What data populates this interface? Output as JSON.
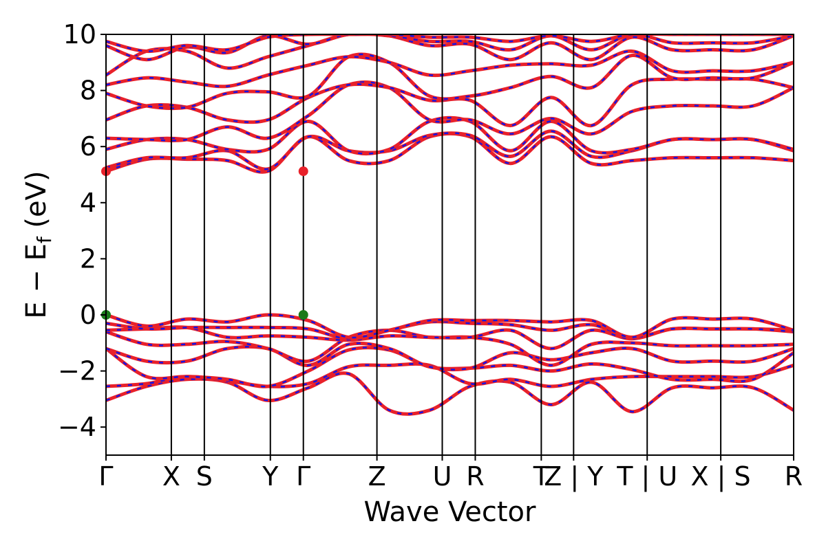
{
  "chart_data": {
    "type": "line",
    "xlabel": "Wave Vector",
    "ylabel": "E − E_f (eV)",
    "ylabel_parts": {
      "main": "E − E",
      "sub": "f",
      "unit": " (eV)"
    },
    "ylim": [
      -5,
      10
    ],
    "yticks": [
      {
        "value": 10,
        "label": "10"
      },
      {
        "value": 8,
        "label": "8"
      },
      {
        "value": 6,
        "label": "6"
      },
      {
        "value": 4,
        "label": "4"
      },
      {
        "value": 2,
        "label": "2"
      },
      {
        "value": 0,
        "label": "0"
      },
      {
        "value": -2,
        "label": "−2"
      },
      {
        "value": -4,
        "label": "−4"
      }
    ],
    "grid": false,
    "kpoints": [
      {
        "label": "Γ",
        "x": 0.0
      },
      {
        "label": "X",
        "x": 0.95
      },
      {
        "label": "S",
        "x": 1.43
      },
      {
        "label": "Y",
        "x": 2.39
      },
      {
        "label": "Γ",
        "x": 2.87
      },
      {
        "label": "Z",
        "x": 3.94
      },
      {
        "label": "U",
        "x": 4.89
      },
      {
        "label": "R",
        "x": 5.37
      },
      {
        "label": "T",
        "x": 6.33
      },
      {
        "label": "Z | Y",
        "x": 6.8
      },
      {
        "label": "T | U",
        "x": 7.87
      },
      {
        "label": "X | S",
        "x": 8.94
      },
      {
        "label": "R",
        "x": 10.0
      }
    ],
    "xlim": [
      0,
      10.0
    ],
    "valence_max_points": [
      {
        "x": 0.0,
        "y": 0.0,
        "color": "#1a7a1a"
      },
      {
        "x": 2.87,
        "y": 0.0,
        "color": "#1a7a1a"
      }
    ],
    "conduction_min_points": [
      {
        "x": 0.0,
        "y": 5.12,
        "color": "#e8212a"
      },
      {
        "x": 2.87,
        "y": 5.12,
        "color": "#e8212a"
      }
    ],
    "band_colors": {
      "up": "#e8212a",
      "down": "#1414e6"
    },
    "bands": [
      {
        "y": [
          -3.05,
          -2.55,
          -2.3,
          -2.4,
          -3.05,
          -2.6,
          -2.1,
          -3.4,
          -3.4,
          -2.55,
          -2.4,
          -3.2,
          -2.4,
          -3.45,
          -2.6,
          -2.6,
          -2.6,
          -3.4
        ]
      },
      {
        "y": [
          -2.55,
          -2.45,
          -2.2,
          -2.35,
          -2.55,
          -2.45,
          -1.85,
          -1.8,
          -1.8,
          -2.45,
          -2.3,
          -2.55,
          -2.3,
          -2.2,
          -2.2,
          -2.2,
          -2.2,
          -1.8
        ]
      },
      {
        "y": [
          -1.2,
          -2.2,
          -2.2,
          -2.3,
          -2.55,
          -2.0,
          -1.25,
          -1.25,
          -1.85,
          -1.9,
          -1.8,
          -2.0,
          -1.75,
          -1.95,
          -2.3,
          -2.3,
          -2.3,
          -1.35
        ]
      },
      {
        "y": [
          -1.2,
          -1.65,
          -1.65,
          -1.2,
          -1.2,
          -1.8,
          -1.05,
          -1.2,
          -1.85,
          -1.9,
          -1.35,
          -1.6,
          -1.35,
          -1.2,
          -1.65,
          -1.65,
          -1.65,
          -1.2
        ]
      },
      {
        "y": [
          -0.6,
          -1.05,
          -1.05,
          -0.95,
          -1.2,
          -1.65,
          -0.8,
          -0.55,
          -0.8,
          -0.8,
          -1.05,
          -1.8,
          -1.05,
          -1.0,
          -1.1,
          -1.1,
          -1.1,
          -1.05
        ]
      },
      {
        "y": [
          -0.55,
          -0.5,
          -0.45,
          -0.8,
          -0.75,
          -0.8,
          -0.9,
          -0.75,
          -0.8,
          -0.8,
          -0.55,
          -1.2,
          -0.55,
          -0.85,
          -0.5,
          -0.5,
          -0.5,
          -0.55
        ]
      },
      {
        "y": [
          -0.3,
          -0.5,
          -0.45,
          -0.45,
          -0.45,
          -0.5,
          -0.85,
          -0.55,
          -0.25,
          -0.3,
          -0.35,
          -0.55,
          -0.35,
          -0.8,
          -0.5,
          -0.5,
          -0.5,
          -0.6
        ]
      },
      {
        "y": [
          0.0,
          -0.4,
          -0.15,
          -0.25,
          0.0,
          -0.2,
          -0.8,
          -0.55,
          -0.2,
          -0.2,
          -0.2,
          -0.25,
          -0.2,
          -0.8,
          -0.15,
          -0.15,
          -0.15,
          -0.55
        ]
      },
      {
        "y": [
          5.12,
          5.55,
          5.55,
          5.5,
          5.12,
          6.35,
          5.5,
          5.5,
          6.35,
          6.35,
          5.4,
          6.35,
          5.4,
          5.5,
          5.6,
          5.6,
          5.6,
          5.5
        ]
      },
      {
        "y": [
          5.25,
          5.6,
          5.6,
          5.85,
          5.2,
          6.35,
          5.85,
          5.85,
          6.4,
          6.4,
          5.65,
          6.55,
          5.65,
          5.85,
          6.25,
          6.25,
          6.25,
          5.85
        ]
      },
      {
        "y": [
          5.9,
          6.25,
          6.25,
          5.9,
          5.9,
          6.9,
          5.85,
          5.9,
          6.9,
          6.9,
          5.85,
          6.9,
          5.85,
          5.9,
          6.25,
          6.25,
          6.25,
          5.9
        ]
      },
      {
        "y": [
          6.3,
          6.25,
          6.25,
          6.7,
          6.3,
          7.1,
          8.2,
          8.1,
          6.95,
          6.95,
          6.45,
          7.0,
          6.45,
          7.25,
          7.45,
          7.45,
          7.45,
          8.1
        ]
      },
      {
        "y": [
          6.95,
          7.45,
          7.4,
          6.95,
          6.95,
          7.75,
          8.2,
          8.1,
          7.65,
          7.65,
          6.75,
          7.75,
          6.75,
          8.2,
          8.4,
          8.4,
          8.4,
          8.1
        ]
      },
      {
        "y": [
          7.9,
          7.45,
          7.4,
          7.9,
          7.95,
          7.8,
          9.2,
          9.0,
          7.8,
          7.8,
          8.1,
          8.5,
          8.1,
          9.25,
          8.45,
          8.45,
          8.45,
          9.0
        ]
      },
      {
        "y": [
          8.2,
          8.45,
          8.3,
          8.15,
          8.55,
          8.9,
          9.2,
          9.0,
          8.55,
          8.7,
          8.9,
          8.95,
          8.9,
          9.4,
          8.7,
          8.7,
          8.7,
          9.0
        ]
      },
      {
        "y": [
          8.55,
          9.4,
          9.4,
          8.8,
          9.2,
          9.6,
          10.0,
          9.95,
          9.6,
          9.65,
          9.1,
          9.7,
          9.1,
          9.9,
          9.45,
          9.45,
          9.45,
          9.95
        ]
      },
      {
        "y": [
          9.6,
          9.1,
          9.55,
          9.35,
          9.95,
          9.65,
          10.0,
          9.95,
          9.75,
          9.75,
          9.45,
          9.95,
          9.45,
          10.0,
          9.7,
          9.7,
          9.7,
          9.95
        ]
      },
      {
        "y": [
          9.75,
          9.4,
          9.6,
          9.45,
          9.9,
          10.0,
          10.0,
          10.0,
          9.9,
          9.9,
          9.75,
          9.95,
          9.75,
          10.0,
          10.0,
          10.0,
          10.0,
          10.0
        ]
      }
    ]
  }
}
